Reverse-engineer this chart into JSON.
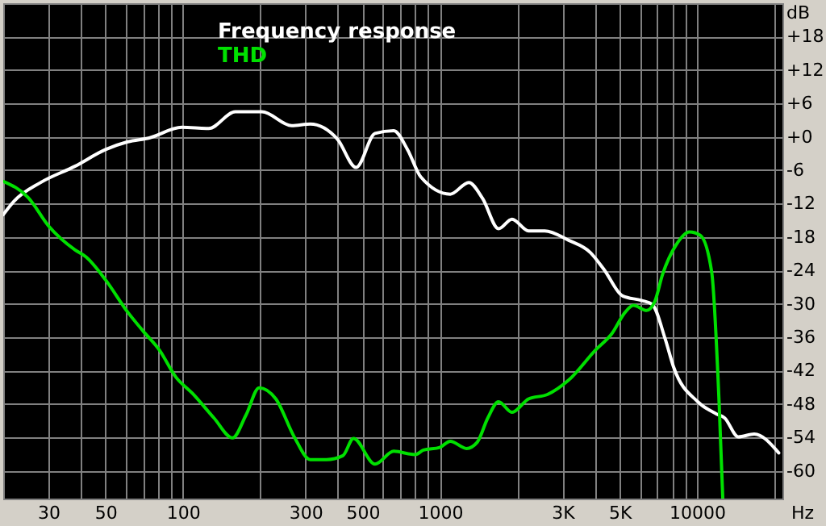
{
  "chart_data": {
    "type": "line",
    "xlabel": "Hz",
    "ylabel": "dB",
    "log": "x",
    "grid": true,
    "legend": "top left",
    "xlim": [
      20,
      21500
    ],
    "ylim": [
      -65,
      24
    ],
    "xticks": [
      {
        "value": 20,
        "label": null
      },
      30,
      {
        "value": 40,
        "label": null
      },
      50,
      {
        "value": 60,
        "label": null
      },
      {
        "value": 70,
        "label": null
      },
      {
        "value": 80,
        "label": null
      },
      {
        "value": 90,
        "label": null
      },
      100,
      {
        "value": 200,
        "label": null
      },
      300,
      {
        "value": 400,
        "label": null
      },
      500,
      {
        "value": 600,
        "label": null
      },
      {
        "value": 700,
        "label": null
      },
      {
        "value": 800,
        "label": null
      },
      {
        "value": 900,
        "label": null
      },
      1000,
      {
        "value": 2000,
        "label": null
      },
      {
        "value": 3000,
        "label": "3K"
      },
      {
        "value": 4000,
        "label": null
      },
      {
        "value": 5000,
        "label": "5K"
      },
      {
        "value": 6000,
        "label": null
      },
      {
        "value": 7000,
        "label": null
      },
      {
        "value": 8000,
        "label": null
      },
      {
        "value": 9000,
        "label": null
      },
      10000,
      {
        "value": 20000,
        "label": null
      }
    ],
    "yticks": [
      -60,
      -54,
      -48,
      -42,
      -36,
      -30,
      -24,
      -18,
      -12,
      -6,
      {
        "value": 0,
        "label": "+0"
      },
      {
        "value": 6,
        "label": "+6"
      },
      {
        "value": 12,
        "label": "+12"
      },
      {
        "value": 18,
        "label": "+18"
      }
    ],
    "series": [
      {
        "name": "Frequency response",
        "color": "#ffffff",
        "x": [
          20,
          22,
          28,
          38,
          50,
          61,
          74,
          99,
          126,
          160,
          203,
          265,
          313,
          399,
          472,
          559,
          661,
          748,
          842,
          1097,
          1295,
          1466,
          1690,
          1908,
          2211,
          2557,
          3170,
          3850,
          4340,
          5140,
          6080,
          6690,
          7530,
          8100,
          10070,
          11920,
          12800,
          14480,
          16700,
          20800
        ],
        "values": [
          -14,
          -11.6,
          -8.2,
          -5.3,
          -2.3,
          -0.9,
          -0.2,
          1.7,
          1.5,
          4.5,
          4.5,
          2,
          2.3,
          -0.4,
          -5.5,
          0.6,
          1.1,
          -2.3,
          -7.2,
          -10.3,
          -8.2,
          -11.1,
          -16.5,
          -14.8,
          -16.9,
          -16.9,
          -18.6,
          -20.8,
          -23.8,
          -28.6,
          -29.4,
          -30.1,
          -36.4,
          -41.3,
          -47.6,
          -49.8,
          -50.5,
          -53.9,
          -53.4,
          -56.8
        ]
      },
      {
        "name": "THD",
        "color": "#00e000",
        "x": [
          20,
          25,
          30,
          38,
          42,
          50,
          61,
          70,
          81,
          94,
          109,
          132,
          156,
          176,
          198,
          230,
          271,
          313,
          362,
          419,
          461,
          559,
          661,
          802,
          862,
          999,
          1097,
          1269,
          1395,
          1536,
          1690,
          1908,
          2211,
          2618,
          3170,
          4030,
          4660,
          5260,
          5660,
          6370,
          6850,
          7350,
          8300,
          9350,
          10300,
          11400,
          12200,
          12600
        ],
        "values": [
          -8,
          -10.9,
          -16,
          -20.3,
          -21.6,
          -25.7,
          -31.5,
          -34.9,
          -38.3,
          -43.2,
          -46.1,
          -50.5,
          -54.1,
          -50,
          -45.1,
          -47.1,
          -53.9,
          -58,
          -58,
          -57.3,
          -54.2,
          -58.8,
          -56.5,
          -57.1,
          -56.3,
          -55.8,
          -54.7,
          -56,
          -54.9,
          -50.5,
          -47.6,
          -49.5,
          -47.1,
          -46.3,
          -43.7,
          -38.3,
          -35.4,
          -31.5,
          -30.3,
          -31.2,
          -29.6,
          -24.7,
          -19.4,
          -17.1,
          -17.7,
          -24.2,
          -48.1,
          -65
        ]
      }
    ]
  }
}
